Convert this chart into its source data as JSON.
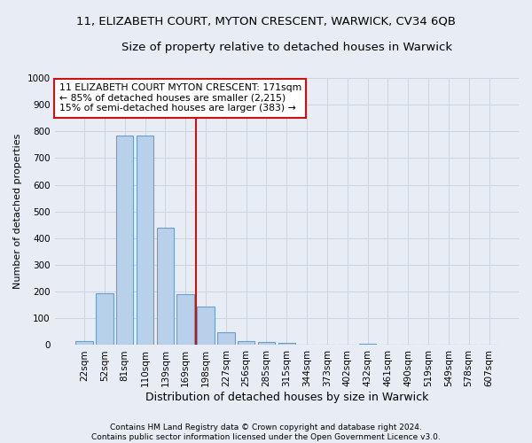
{
  "title1": "11, ELIZABETH COURT, MYTON CRESCENT, WARWICK, CV34 6QB",
  "title2": "Size of property relative to detached houses in Warwick",
  "xlabel": "Distribution of detached houses by size in Warwick",
  "ylabel": "Number of detached properties",
  "footer1": "Contains HM Land Registry data © Crown copyright and database right 2024.",
  "footer2": "Contains public sector information licensed under the Open Government Licence v3.0.",
  "bin_labels": [
    "22sqm",
    "52sqm",
    "81sqm",
    "110sqm",
    "139sqm",
    "169sqm",
    "198sqm",
    "227sqm",
    "256sqm",
    "285sqm",
    "315sqm",
    "344sqm",
    "373sqm",
    "402sqm",
    "432sqm",
    "461sqm",
    "490sqm",
    "519sqm",
    "549sqm",
    "578sqm",
    "607sqm"
  ],
  "bar_values": [
    15,
    193,
    783,
    785,
    438,
    192,
    143,
    47,
    14,
    10,
    7,
    0,
    0,
    0,
    6,
    0,
    0,
    0,
    0,
    0,
    0
  ],
  "bar_color": "#b8d0ea",
  "bar_edge_color": "#6a9fc8",
  "grid_color": "#cdd5e0",
  "vline_x": 5.5,
  "vline_color": "#cc1111",
  "annotation_text": "11 ELIZABETH COURT MYTON CRESCENT: 171sqm\n← 85% of detached houses are smaller (2,215)\n15% of semi-detached houses are larger (383) →",
  "annotation_box_color": "#ffffff",
  "annotation_box_edge": "#cc1111",
  "ylim": [
    0,
    1000
  ],
  "yticks": [
    0,
    100,
    200,
    300,
    400,
    500,
    600,
    700,
    800,
    900,
    1000
  ],
  "title1_fontsize": 9.5,
  "title2_fontsize": 9.5,
  "xlabel_fontsize": 9,
  "ylabel_fontsize": 8,
  "tick_fontsize": 7.5,
  "annotation_fontsize": 7.8,
  "background_color": "#e8ecf5"
}
